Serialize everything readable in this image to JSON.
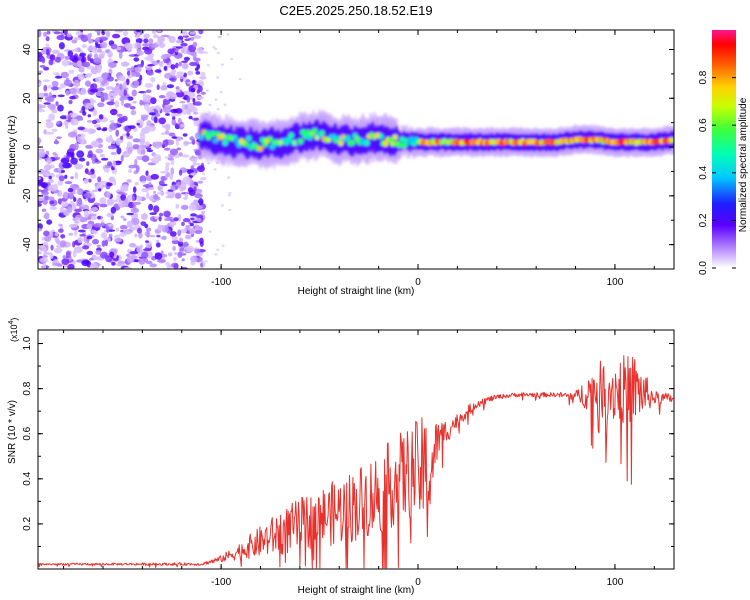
{
  "figure": {
    "title": "C2E5.2025.250.18.52.E19"
  },
  "chart_data": [
    {
      "type": "heatmap",
      "title": "C2E5.2025.250.18.52.E19",
      "xlabel": "Height of straight line (km)",
      "ylabel": "Frequency (Hz)",
      "xlim": [
        -193,
        130
      ],
      "ylim": [
        -50,
        48
      ],
      "xticks": [
        -100,
        0,
        100
      ],
      "xtick_labels": [
        "-100",
        "0",
        "100"
      ],
      "yticks": [
        -40,
        -20,
        0,
        20,
        40
      ],
      "ytick_labels": [
        "-40",
        "-20",
        "0",
        "20",
        "40"
      ],
      "noise_region_km": [
        -193,
        -109
      ],
      "ridge": {
        "x": [
          -110,
          -100,
          -90,
          -80,
          -70,
          -60,
          -50,
          -40,
          -30,
          -20,
          -10,
          0,
          10,
          20,
          30,
          40,
          50,
          60,
          70,
          80,
          90,
          100,
          110,
          120,
          130
        ],
        "freq_hz": [
          5,
          3,
          2,
          1,
          2,
          4,
          5,
          3,
          3,
          4,
          2,
          2,
          2,
          2,
          2,
          2,
          2,
          2,
          2,
          3,
          3,
          2,
          2,
          2,
          3
        ]
      },
      "colorbar": {
        "label": "Normalized spectral amplitude",
        "range": [
          0,
          1
        ],
        "ticks": [
          0.0,
          0.2,
          0.4,
          0.6,
          0.8
        ],
        "tick_labels": [
          "0.0",
          "0.2",
          "0.4",
          "0.6",
          "0.8"
        ]
      }
    },
    {
      "type": "line",
      "xlabel": "Height of straight line (km)",
      "ylabel": "SNR (10 * v/v)",
      "scale_label": "(x10",
      "scale_exp": "4",
      "scale_close": ")",
      "xlim": [
        -193,
        130
      ],
      "ylim": [
        0.0,
        1.06
      ],
      "xticks": [
        -100,
        0,
        100
      ],
      "xtick_labels": [
        "-100",
        "0",
        "100"
      ],
      "yticks": [
        0.2,
        0.4,
        0.6,
        0.8,
        1.0
      ],
      "ytick_labels": [
        "0.2",
        "0.4",
        "0.6",
        "0.8",
        "1.0"
      ],
      "color": "#e8302c",
      "series": [
        {
          "name": "SNR",
          "x": [
            -193,
            -110,
            -100,
            -90,
            -80,
            -70,
            -60,
            -50,
            -40,
            -30,
            -20,
            -10,
            0,
            5,
            10,
            20,
            30,
            40,
            50,
            60,
            70,
            80,
            90,
            100,
            110,
            120,
            130
          ],
          "base": [
            0.02,
            0.02,
            0.04,
            0.07,
            0.1,
            0.13,
            0.16,
            0.19,
            0.21,
            0.24,
            0.28,
            0.34,
            0.38,
            0.3,
            0.55,
            0.65,
            0.73,
            0.76,
            0.77,
            0.77,
            0.77,
            0.76,
            0.76,
            0.75,
            0.75,
            0.75,
            0.75
          ],
          "amp": [
            0.004,
            0.006,
            0.015,
            0.04,
            0.07,
            0.1,
            0.12,
            0.13,
            0.15,
            0.17,
            0.19,
            0.2,
            0.22,
            0.3,
            0.08,
            0.03,
            0.02,
            0.01,
            0.01,
            0.01,
            0.01,
            0.02,
            0.12,
            0.15,
            0.16,
            0.03,
            0.02
          ]
        }
      ]
    }
  ]
}
